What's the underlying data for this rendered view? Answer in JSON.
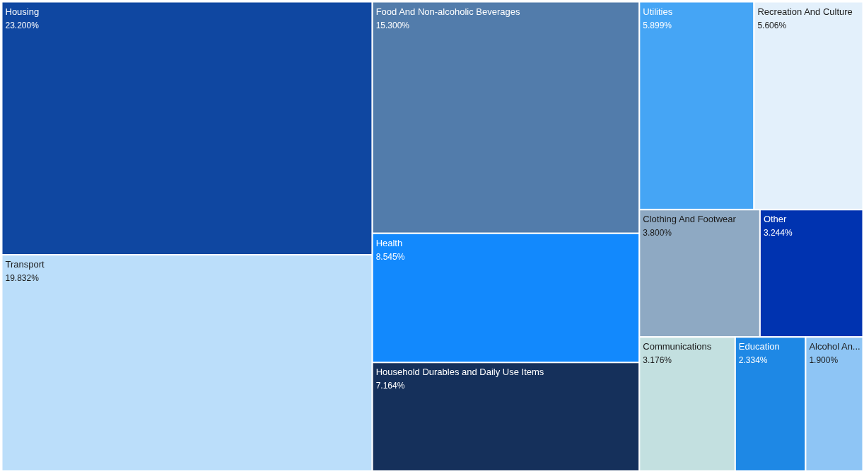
{
  "chart_data": {
    "type": "other",
    "categories": [
      "Housing",
      "Transport",
      "Food And Non-alcoholic Beverages",
      "Health",
      "Household Durables and Daily Use Items",
      "Utilities",
      "Recreation And Culture",
      "Clothing And Footwear",
      "Other",
      "Communications",
      "Education",
      "Alcohol An..."
    ],
    "values": [
      23.2,
      19.832,
      15.3,
      8.545,
      7.164,
      5.899,
      5.606,
      3.8,
      3.244,
      3.176,
      2.334,
      1.9
    ],
    "value_labels": [
      "23.200%",
      "19.832%",
      "15.300%",
      "8.545%",
      "7.164%",
      "5.899%",
      "5.606%",
      "3.800%",
      "3.244%",
      "3.176%",
      "2.334%",
      "1.900%"
    ],
    "colors": [
      "#0f47a1",
      "#bbdefa",
      "#527cab",
      "#1289fd",
      "#15305b",
      "#45a5f5",
      "#e3f0fb",
      "#8ea9c3",
      "#0033b0",
      "#c3e0e0",
      "#1e88e5",
      "#8ec5f5"
    ]
  }
}
